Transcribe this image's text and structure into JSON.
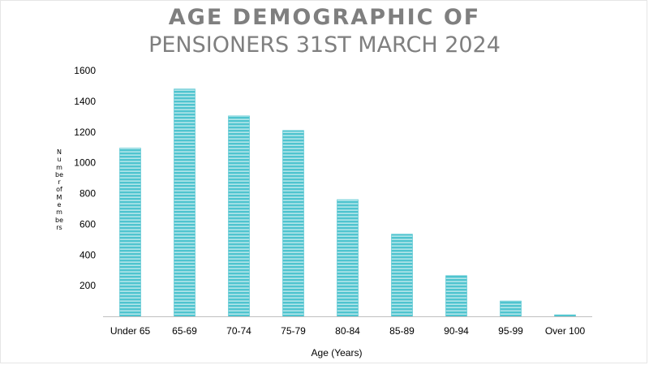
{
  "chart_data": {
    "type": "bar",
    "title_line1": "AGE DEMOGRAPHIC OF",
    "title_line2": "PENSIONERS 31ST MARCH 2024",
    "xlabel": "Age (Years)",
    "ylabel": "Number of Members",
    "categories": [
      "Under 65",
      "65-69",
      "70-74",
      "75-79",
      "80-84",
      "85-89",
      "90-94",
      "95-99",
      "Over 100"
    ],
    "values": [
      1095,
      1480,
      1305,
      1210,
      760,
      535,
      265,
      100,
      10
    ],
    "ylim": [
      0,
      1600
    ],
    "yticks": [
      200,
      400,
      600,
      800,
      1000,
      1200,
      1400,
      1600
    ],
    "grid": false,
    "bar_color": "#4fc4cf",
    "bar_stripe_color": "#dff4f6"
  }
}
